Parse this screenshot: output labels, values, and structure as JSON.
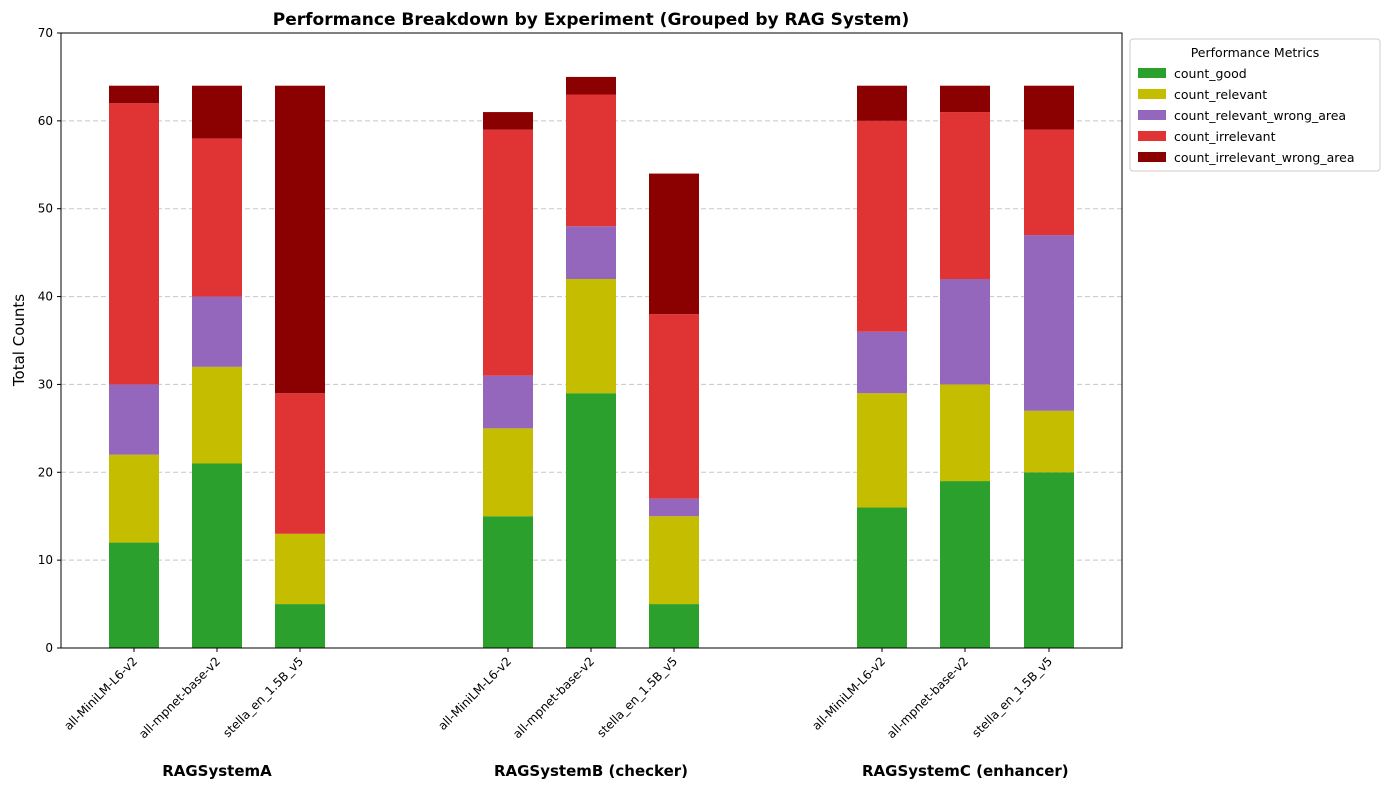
{
  "chart_data": {
    "type": "bar",
    "stacked": true,
    "title": "Performance Breakdown by Experiment (Grouped by RAG System)",
    "xlabel": "",
    "ylabel": "Total Counts",
    "ylim": [
      0,
      70
    ],
    "yticks": [
      0,
      10,
      20,
      30,
      40,
      50,
      60,
      70
    ],
    "grid": {
      "y": true,
      "style": "dashed"
    },
    "legend": {
      "title": "Performance Metrics",
      "placement": "outside-top-right"
    },
    "categories": [
      "all-MiniLM-L6-v2",
      "all-mpnet-base-v2",
      "stella_en_1.5B_v5",
      "all-MiniLM-L6-v2",
      "all-mpnet-base-v2",
      "stella_en_1.5B_v5",
      "all-MiniLM-L6-v2",
      "all-mpnet-base-v2",
      "stella_en_1.5B_v5"
    ],
    "groups": [
      {
        "label": "RAGSystemA",
        "indices": [
          0,
          1,
          2
        ]
      },
      {
        "label": "RAGSystemB (checker)",
        "indices": [
          3,
          4,
          5
        ]
      },
      {
        "label": "RAGSystemC (enhancer)",
        "indices": [
          6,
          7,
          8
        ]
      }
    ],
    "series": [
      {
        "name": "count_good",
        "color": "#2ca02c",
        "values": [
          12,
          21,
          5,
          15,
          29,
          5,
          16,
          19,
          20
        ]
      },
      {
        "name": "count_relevant",
        "color": "#c4bd00",
        "values": [
          10,
          11,
          8,
          10,
          13,
          10,
          13,
          11,
          7
        ]
      },
      {
        "name": "count_relevant_wrong_area",
        "color": "#9467bd",
        "values": [
          8,
          8,
          0,
          6,
          6,
          2,
          7,
          12,
          20
        ]
      },
      {
        "name": "count_irrelevant",
        "color": "#e03434",
        "values": [
          32,
          18,
          16,
          28,
          15,
          21,
          24,
          19,
          12
        ]
      },
      {
        "name": "count_irrelevant_wrong_area",
        "color": "#8b0000",
        "values": [
          2,
          6,
          35,
          2,
          2,
          16,
          4,
          3,
          5
        ]
      }
    ]
  }
}
